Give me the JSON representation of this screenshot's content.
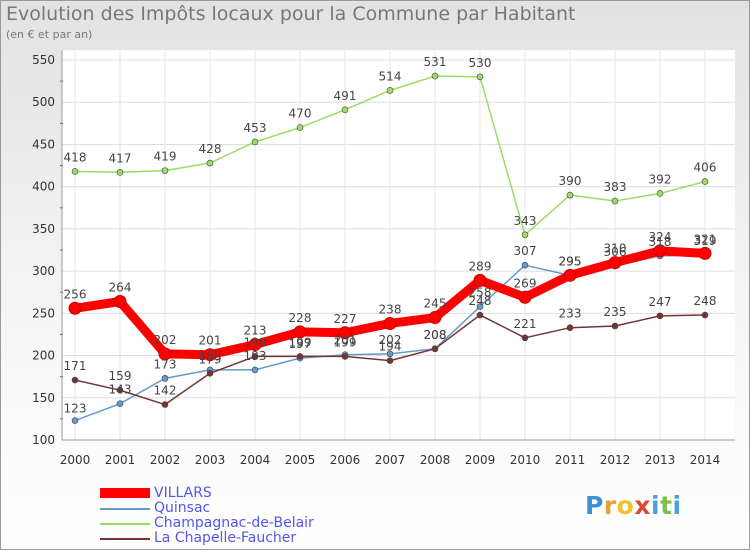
{
  "header": {
    "title": "Evolution des Impôts locaux pour la Commune par Habitant",
    "subtitle": "(en € et par an)"
  },
  "chart_data": {
    "type": "line",
    "title": "Evolution des Impôts locaux pour la Commune par Habitant",
    "subtitle": "(en € et par an)",
    "xlabel": "",
    "ylabel": "",
    "x": [
      "2000",
      "2001",
      "2002",
      "2003",
      "2004",
      "2005",
      "2006",
      "2007",
      "2008",
      "2009",
      "2010",
      "2011",
      "2012",
      "2013",
      "2014"
    ],
    "ylim": [
      100,
      550
    ],
    "yticks": [
      100,
      150,
      200,
      250,
      300,
      350,
      400,
      450,
      500,
      550
    ],
    "grid": true,
    "legend_position": "bottom-left",
    "series": [
      {
        "name": "VILLARS",
        "color": "#ff0000",
        "labelColor": "#444444",
        "values": [
          256,
          264,
          202,
          201,
          213,
          228,
          227,
          238,
          245,
          289,
          269,
          295,
          310,
          324,
          321
        ]
      },
      {
        "name": "Quinsac",
        "color": "#6699cc",
        "labelColor": "#444444",
        "values": [
          123,
          143,
          173,
          183,
          183,
          197,
          201,
          202,
          208,
          258,
          307,
          295,
          306,
          318,
          319
        ]
      },
      {
        "name": "Champagnac-de-Belair",
        "color": "#99dd66",
        "labelColor": "#444444",
        "values": [
          418,
          417,
          419,
          428,
          453,
          470,
          491,
          514,
          531,
          530,
          343,
          390,
          383,
          392,
          406
        ]
      },
      {
        "name": "La Chapelle-Faucher",
        "color": "#773333",
        "labelColor": "#444444",
        "values": [
          171,
          159,
          142,
          179,
          199,
          199,
          199,
          194,
          208,
          248,
          221,
          233,
          235,
          247,
          248
        ]
      }
    ]
  },
  "legend": {
    "items": [
      {
        "label": "VILLARS",
        "color": "#ff0000",
        "thickness": "thick"
      },
      {
        "label": "Quinsac",
        "color": "#6699cc",
        "thickness": "thin"
      },
      {
        "label": "Champagnac-de-Belair",
        "color": "#99dd66",
        "thickness": "thin"
      },
      {
        "label": "La Chapelle-Faucher",
        "color": "#773333",
        "thickness": "thin"
      }
    ]
  },
  "logo": {
    "letters": [
      "P",
      "r",
      "o",
      "x",
      "i",
      "t",
      "i"
    ],
    "colors": [
      "#3a8fd6",
      "#e8a13a",
      "#f2c12e",
      "#d94a3a",
      "#4aa3df",
      "#7cc04a",
      "#4aa3df"
    ]
  }
}
